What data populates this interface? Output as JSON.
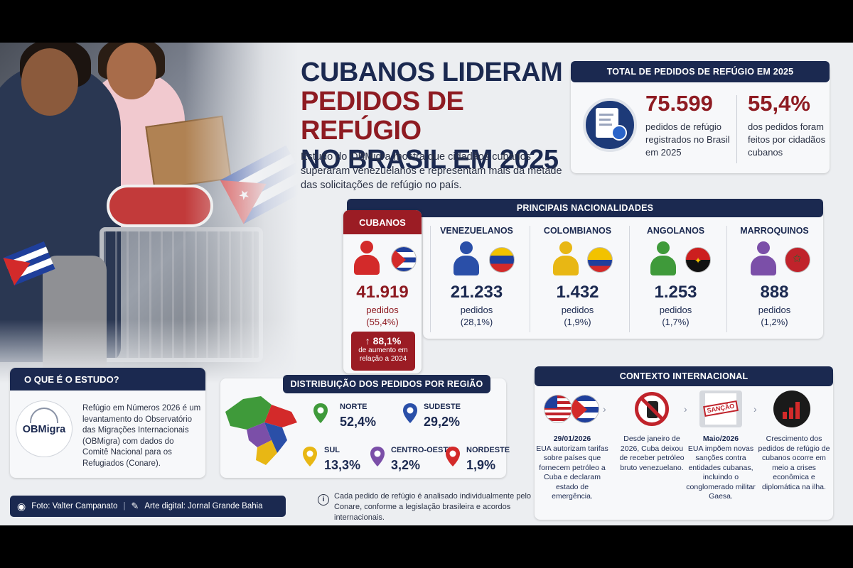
{
  "title": {
    "line1": "CUBANOS LIDERAM",
    "line2": "PEDIDOS DE REFÚGIO",
    "line3": "NO BRASIL EM 2025"
  },
  "subtitle": "Estudo do OBMigra mostra que cidadãos cubanos superaram venezuelanos e representam mais da metade das solicitações de refúgio no país.",
  "total": {
    "header": "TOTAL DE PEDIDOS DE REFÚGIO EM 2025",
    "count": "75.599",
    "count_label": "pedidos de refúgio registrados no Brasil em 2025",
    "share": "55,4%",
    "share_label": "dos pedidos foram feitos por cidadãos cubanos"
  },
  "nationalities": {
    "header": "PRINCIPAIS NACIONALIDADES",
    "items": [
      {
        "name": "CUBANOS",
        "count": "41.919",
        "unit": "pedidos",
        "share": "(55,4%)",
        "color": "#d32a2a"
      },
      {
        "name": "VENEZUELANOS",
        "count": "21.233",
        "unit": "pedidos",
        "share": "(28,1%)",
        "color": "#2a4fa8"
      },
      {
        "name": "COLOMBIANOS",
        "count": "1.432",
        "unit": "pedidos",
        "share": "(1,9%)",
        "color": "#e8b714"
      },
      {
        "name": "ANGOLANOS",
        "count": "1.253",
        "unit": "pedidos",
        "share": "(1,7%)",
        "color": "#3f9a3a"
      },
      {
        "name": "MARROQUINOS",
        "count": "888",
        "unit": "pedidos",
        "share": "(1,2%)",
        "color": "#7b4fa8"
      }
    ],
    "increase_value": "88,1%",
    "increase_label": "de aumento em relação a 2024"
  },
  "study": {
    "header": "O QUE É O ESTUDO?",
    "logo": "OBMigra",
    "text": "Refúgio em Números 2026 é um levantamento do Observatório das Migrações Internacionais (OBMigra) com dados do Comitê Nacional para os Refugiados (Conare)."
  },
  "credits": {
    "photo": "Foto: Valter Campanato",
    "art": "Arte digital: Jornal Grande Bahia"
  },
  "regions": {
    "header": "DISTRIBUIÇÃO DOS PEDIDOS POR REGIÃO",
    "items": [
      {
        "name": "NORTE",
        "value": "52,4%",
        "color": "#3f9a3a"
      },
      {
        "name": "SUDESTE",
        "value": "29,2%",
        "color": "#2a4fa8"
      },
      {
        "name": "SUL",
        "value": "13,3%",
        "color": "#e8b714"
      },
      {
        "name": "CENTRO-OESTE",
        "value": "3,2%",
        "color": "#7b4fa8"
      },
      {
        "name": "NORDESTE",
        "value": "1,9%",
        "color": "#d32a2a"
      }
    ]
  },
  "note": "Cada pedido de refúgio é analisado individualmente pelo Conare, conforme a legislação brasileira e acordos internacionais.",
  "context": {
    "header": "CONTEXTO INTERNACIONAL",
    "items": [
      {
        "date": "29/01/2026",
        "text": "EUA autorizam tarifas sobre países que fornecem petróleo a Cuba e declaram estado de emergência."
      },
      {
        "date": "",
        "text": "Desde janeiro de 2026, Cuba deixou de receber petróleo bruto venezuelano."
      },
      {
        "date": "Maio/2026",
        "text": "EUA impõem novas sanções contra entidades cubanas, incluindo o conglomerado militar Gaesa."
      },
      {
        "date": "",
        "text": "Crescimento dos pedidos de refúgio de cubanos ocorre em meio a crises econômica e diplomática na ilha."
      }
    ],
    "stamp": "SANÇÃO"
  }
}
